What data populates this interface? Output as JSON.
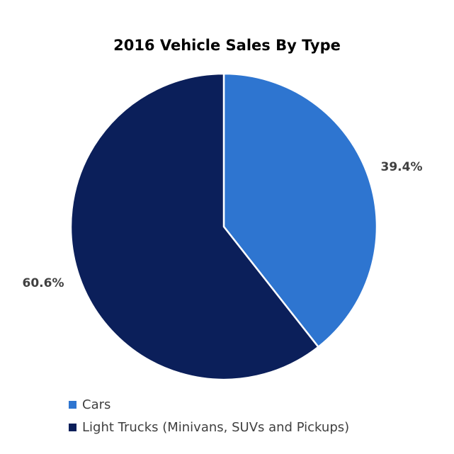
{
  "chart_data": {
    "type": "pie",
    "title": "2016 Vehicle Sales By Type",
    "slices": [
      {
        "name": "Cars",
        "value": 39.4,
        "label": "39.4%",
        "color": "#2E75D0"
      },
      {
        "name": "Light Trucks (Minivans, SUVs and Pickups)",
        "value": 60.6,
        "label": "60.6%",
        "color": "#0B1F5A"
      }
    ],
    "start_angle": "12 o'clock",
    "direction": "clockwise",
    "legend_position": "bottom-left"
  }
}
